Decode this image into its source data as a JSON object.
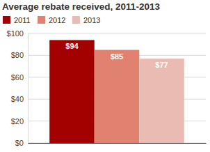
{
  "chart_data": {
    "type": "bar",
    "title": "Average rebate received, 2011-2013",
    "categories": [
      null
    ],
    "series": [
      {
        "name": "2011",
        "color": "#a30000",
        "values": [
          94
        ],
        "value_labels": [
          "$94"
        ]
      },
      {
        "name": "2012",
        "color": "#e0826f",
        "values": [
          85
        ],
        "value_labels": [
          "$85"
        ]
      },
      {
        "name": "2013",
        "color": "#e9bbb3",
        "values": [
          77
        ],
        "value_labels": [
          "$77"
        ]
      }
    ],
    "ylim": [
      0,
      100
    ],
    "yticks": [
      {
        "value": 0,
        "label": "$0"
      },
      {
        "value": 20,
        "label": "$20"
      },
      {
        "value": 40,
        "label": "$40"
      },
      {
        "value": 60,
        "label": "$60"
      },
      {
        "value": 80,
        "label": "$80"
      },
      {
        "value": 100,
        "label": "$100"
      }
    ],
    "grid": true,
    "legend": "top",
    "data_labels": true
  }
}
